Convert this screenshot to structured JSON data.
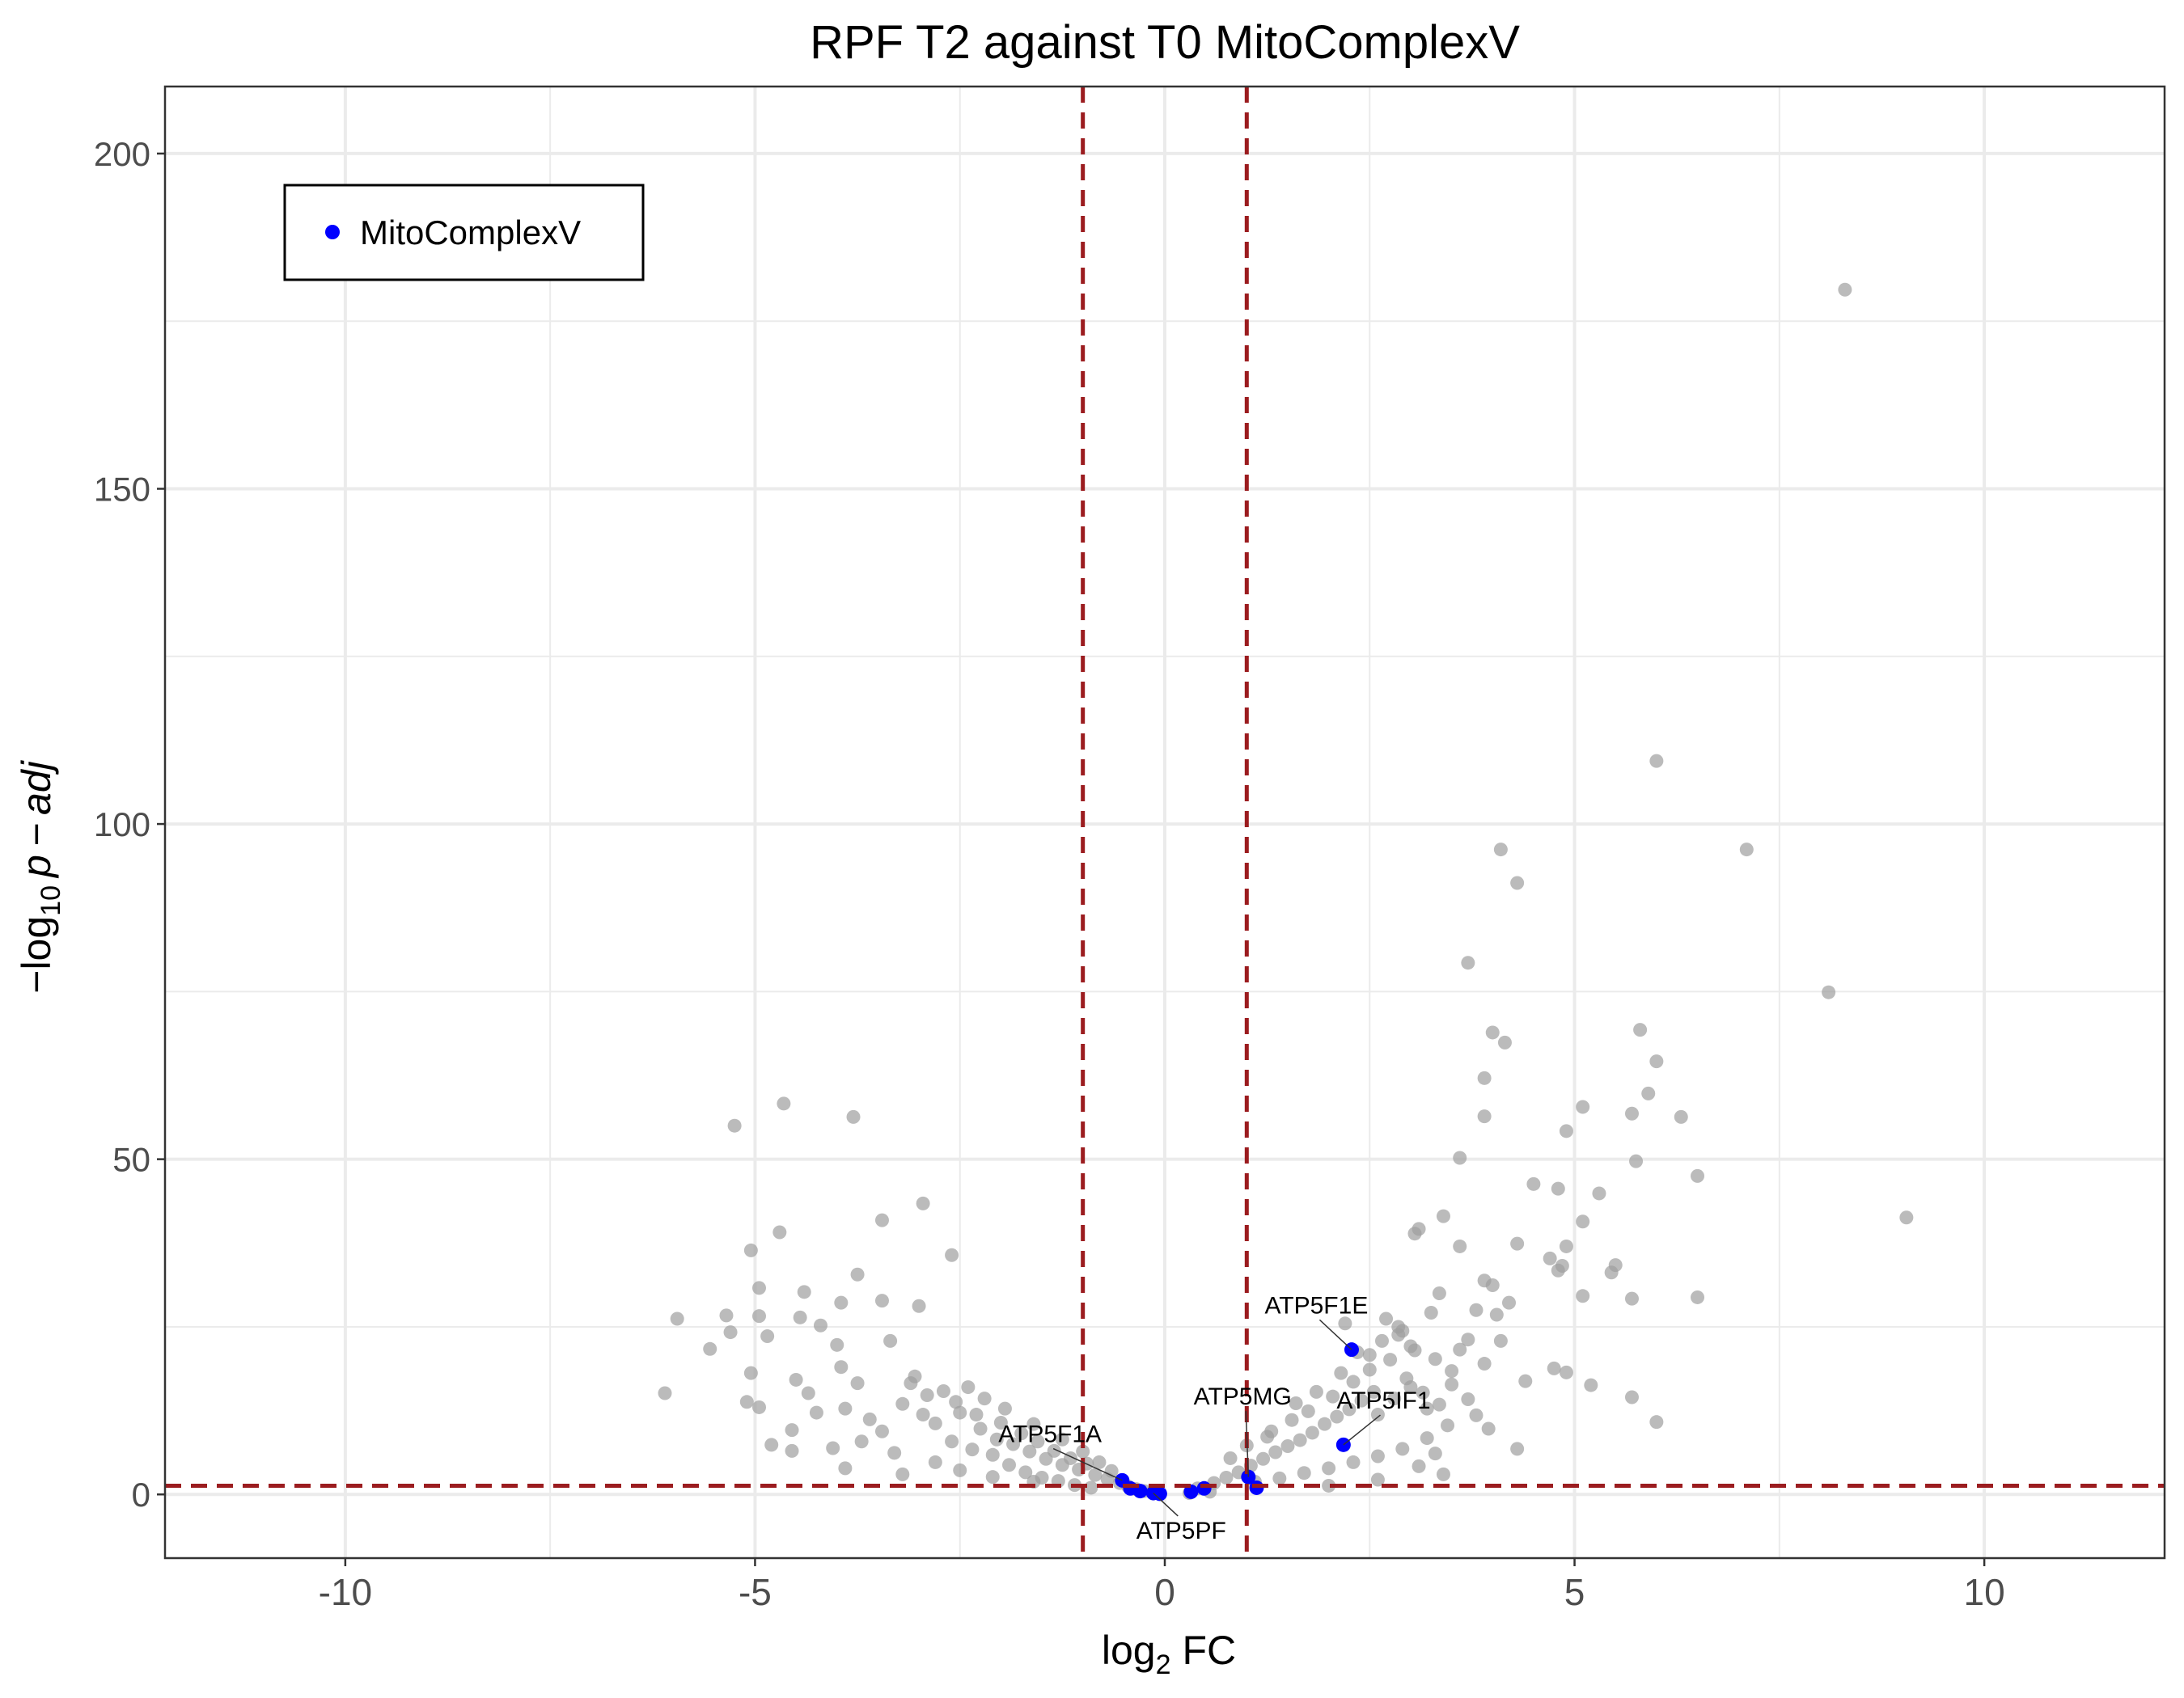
{
  "chart_data": {
    "type": "scatter",
    "title": "RPF T2 against T0 MitoComplexV",
    "xlabel": {
      "base": "log",
      "sub": "2",
      "tail": " FC"
    },
    "ylabel": {
      "prefix": "−log",
      "sub": "10",
      "tail": "p − adj"
    },
    "xlim": [
      -12.2,
      12.2
    ],
    "ylim": [
      -9.5,
      210
    ],
    "xticks": [
      -10,
      -5,
      0,
      5,
      10
    ],
    "xtick_labels": [
      "-10",
      "-5",
      "0",
      "5",
      "10"
    ],
    "yticks": [
      0,
      50,
      100,
      150,
      200
    ],
    "ytick_labels": [
      "0",
      "50",
      "100",
      "150",
      "200"
    ],
    "x_minor": [
      -7.5,
      -2.5,
      2.5,
      7.5
    ],
    "y_minor": [
      25,
      75,
      125,
      175
    ],
    "grid": true,
    "legend": {
      "position": "top-left",
      "entries": [
        "MitoComplexV"
      ]
    },
    "colors": {
      "background": "#ffffff",
      "other": "#9e9e9e",
      "highlight": "#0000ff",
      "threshold": "#9b1c1f",
      "grid": "#ebebeb",
      "border": "#333333"
    },
    "thresholds": {
      "fc": [
        -1,
        1
      ],
      "padj": 1.3
    },
    "series": [
      {
        "role": "other",
        "points": [
          [
            8.3,
            179.7
          ],
          [
            6.0,
            109.4
          ],
          [
            7.1,
            96.2
          ],
          [
            4.1,
            96.2
          ],
          [
            4.3,
            91.2
          ],
          [
            3.7,
            79.3
          ],
          [
            8.1,
            74.9
          ],
          [
            4.0,
            68.9
          ],
          [
            4.15,
            67.4
          ],
          [
            5.8,
            69.3
          ],
          [
            6.0,
            64.6
          ],
          [
            3.9,
            62.1
          ],
          [
            5.9,
            59.8
          ],
          [
            5.1,
            57.8
          ],
          [
            5.7,
            56.8
          ],
          [
            3.9,
            56.4
          ],
          [
            6.3,
            56.3
          ],
          [
            4.9,
            54.2
          ],
          [
            5.75,
            49.7
          ],
          [
            3.6,
            50.2
          ],
          [
            6.5,
            47.5
          ],
          [
            4.5,
            46.3
          ],
          [
            4.8,
            45.6
          ],
          [
            5.3,
            44.9
          ],
          [
            9.05,
            41.3
          ],
          [
            3.4,
            41.5
          ],
          [
            5.1,
            40.7
          ],
          [
            3.1,
            39.6
          ],
          [
            3.05,
            38.9
          ],
          [
            4.9,
            37.0
          ],
          [
            4.3,
            37.4
          ],
          [
            3.6,
            37.0
          ],
          [
            4.7,
            35.2
          ],
          [
            4.85,
            34.1
          ],
          [
            5.5,
            34.2
          ],
          [
            4.8,
            33.4
          ],
          [
            5.45,
            33.1
          ],
          [
            3.9,
            31.9
          ],
          [
            4.0,
            31.2
          ],
          [
            5.1,
            29.6
          ],
          [
            5.7,
            29.2
          ],
          [
            6.5,
            29.4
          ],
          [
            4.2,
            28.6
          ],
          [
            3.8,
            27.5
          ],
          [
            4.05,
            26.8
          ],
          [
            2.7,
            26.2
          ],
          [
            2.2,
            25.5
          ],
          [
            2.9,
            24.4
          ],
          [
            3.7,
            23.1
          ],
          [
            4.1,
            22.9
          ],
          [
            4.75,
            18.8
          ],
          [
            5.2,
            16.3
          ],
          [
            6.0,
            10.8
          ],
          [
            4.4,
            16.9
          ],
          [
            4.3,
            6.8
          ],
          [
            5.7,
            14.5
          ],
          [
            4.9,
            18.2
          ],
          [
            3.3,
            20.2
          ],
          [
            3.5,
            18.4
          ],
          [
            3.0,
            16.0
          ],
          [
            3.2,
            12.8
          ],
          [
            2.8,
            14.3
          ],
          [
            2.6,
            11.9
          ],
          [
            3.9,
            19.5
          ],
          [
            2.5,
            20.8
          ],
          [
            3.35,
            30.0
          ],
          [
            3.25,
            27.1
          ],
          [
            3.0,
            22.1
          ],
          [
            2.85,
            25.0
          ],
          [
            3.6,
            21.6
          ],
          [
            -5.25,
            55.0
          ],
          [
            -4.65,
            58.3
          ],
          [
            -3.8,
            56.3
          ],
          [
            -5.05,
            36.4
          ],
          [
            -4.7,
            39.1
          ],
          [
            -3.45,
            40.9
          ],
          [
            -2.95,
            43.4
          ],
          [
            -2.6,
            35.7
          ],
          [
            -6.1,
            15.1
          ],
          [
            -5.95,
            26.2
          ],
          [
            -5.55,
            21.7
          ],
          [
            -5.35,
            26.7
          ],
          [
            -4.95,
            30.8
          ],
          [
            -4.95,
            26.6
          ],
          [
            -4.45,
            26.4
          ],
          [
            -4.4,
            30.2
          ],
          [
            -4.2,
            25.2
          ],
          [
            -3.95,
            28.6
          ],
          [
            -3.75,
            32.8
          ],
          [
            -3.45,
            28.9
          ],
          [
            -3.0,
            28.1
          ],
          [
            -4.85,
            23.6
          ],
          [
            -4.5,
            17.1
          ],
          [
            -4.0,
            22.3
          ],
          [
            -3.95,
            19.0
          ],
          [
            -3.75,
            16.6
          ],
          [
            -3.35,
            22.9
          ],
          [
            -3.05,
            17.6
          ],
          [
            -5.05,
            18.1
          ],
          [
            -4.55,
            9.6
          ],
          [
            -4.25,
            12.2
          ],
          [
            -4.35,
            15.1
          ],
          [
            -4.55,
            6.5
          ],
          [
            -5.1,
            13.8
          ],
          [
            -3.9,
            12.8
          ],
          [
            -3.6,
            11.2
          ],
          [
            -3.2,
            13.5
          ],
          [
            -2.8,
            10.6
          ],
          [
            -2.5,
            12.2
          ],
          [
            -2.25,
            9.8
          ],
          [
            -2.05,
            8.2
          ],
          [
            -1.85,
            7.5
          ],
          [
            -1.65,
            6.4
          ],
          [
            -1.45,
            5.3
          ],
          [
            -1.25,
            4.4
          ],
          [
            -1.05,
            3.7
          ],
          [
            -0.85,
            2.9
          ],
          [
            -0.7,
            2.3
          ],
          [
            -0.55,
            1.7
          ],
          [
            -0.45,
            1.2
          ],
          [
            -2.2,
            14.3
          ],
          [
            -2.4,
            16.0
          ],
          [
            -2.7,
            15.4
          ],
          [
            -3.1,
            16.6
          ],
          [
            -2.9,
            14.8
          ],
          [
            -2.1,
            5.9
          ],
          [
            -1.9,
            4.4
          ],
          [
            -1.7,
            3.3
          ],
          [
            -1.5,
            2.5
          ],
          [
            -1.3,
            2.0
          ],
          [
            -2.6,
            7.9
          ],
          [
            -2.35,
            6.7
          ],
          [
            -2.0,
            10.7
          ],
          [
            -1.75,
            9.1
          ],
          [
            -1.55,
            7.9
          ],
          [
            -1.35,
            6.5
          ],
          [
            -1.15,
            5.4
          ],
          [
            -0.95,
            4.6
          ],
          [
            -2.8,
            4.8
          ],
          [
            -3.3,
            6.2
          ],
          [
            -3.7,
            7.9
          ],
          [
            -4.05,
            6.9
          ],
          [
            -3.45,
            9.4
          ],
          [
            -2.95,
            11.9
          ],
          [
            -2.55,
            13.8
          ],
          [
            -2.3,
            11.9
          ],
          [
            -1.95,
            12.8
          ],
          [
            -1.6,
            10.5
          ],
          [
            -1.25,
            8.2
          ],
          [
            -1.0,
            6.4
          ],
          [
            -0.8,
            4.8
          ],
          [
            -0.65,
            3.5
          ],
          [
            -0.35,
            0.8
          ],
          [
            -0.25,
            0.5
          ],
          [
            -0.15,
            0.3
          ],
          [
            -1.1,
            1.4
          ],
          [
            -1.6,
            1.9
          ],
          [
            -2.1,
            2.6
          ],
          [
            -2.5,
            3.6
          ],
          [
            -0.9,
            1.0
          ],
          [
            0.4,
            0.9
          ],
          [
            0.6,
            1.7
          ],
          [
            0.75,
            2.5
          ],
          [
            0.9,
            3.3
          ],
          [
            1.05,
            4.3
          ],
          [
            1.2,
            5.3
          ],
          [
            1.35,
            6.3
          ],
          [
            1.5,
            7.2
          ],
          [
            1.65,
            8.1
          ],
          [
            1.8,
            9.2
          ],
          [
            1.95,
            10.5
          ],
          [
            2.1,
            11.6
          ],
          [
            2.25,
            12.7
          ],
          [
            2.4,
            14.0
          ],
          [
            2.55,
            15.3
          ],
          [
            1.1,
            1.9
          ],
          [
            1.4,
            2.4
          ],
          [
            1.7,
            3.2
          ],
          [
            2.0,
            3.9
          ],
          [
            2.3,
            4.8
          ],
          [
            2.6,
            5.7
          ],
          [
            2.9,
            6.8
          ],
          [
            3.2,
            8.4
          ],
          [
            3.45,
            10.3
          ],
          [
            3.1,
            4.2
          ],
          [
            1.3,
            9.4
          ],
          [
            1.55,
            11.1
          ],
          [
            1.75,
            12.4
          ],
          [
            2.05,
            14.6
          ],
          [
            2.3,
            16.8
          ],
          [
            2.5,
            18.6
          ],
          [
            2.75,
            20.1
          ],
          [
            2.95,
            17.3
          ],
          [
            3.15,
            15.2
          ],
          [
            3.35,
            13.4
          ],
          [
            3.5,
            16.4
          ],
          [
            3.7,
            14.2
          ],
          [
            3.8,
            11.8
          ],
          [
            3.95,
            9.8
          ],
          [
            3.3,
            6.1
          ],
          [
            0.8,
            5.4
          ],
          [
            1.0,
            7.3
          ],
          [
            1.25,
            8.6
          ],
          [
            1.6,
            13.6
          ],
          [
            1.85,
            15.3
          ],
          [
            2.15,
            18.1
          ],
          [
            2.35,
            21.2
          ],
          [
            2.65,
            22.9
          ],
          [
            2.85,
            23.8
          ],
          [
            3.05,
            21.5
          ],
          [
            0.55,
            0.4
          ],
          [
            0.3,
            0.2
          ],
          [
            2.0,
            1.3
          ],
          [
            2.6,
            2.2
          ],
          [
            3.4,
            3.0
          ],
          [
            -3.9,
            3.9
          ],
          [
            -3.2,
            3.0
          ],
          [
            -4.8,
            7.4
          ],
          [
            -4.95,
            13.0
          ],
          [
            -5.3,
            24.2
          ]
        ]
      },
      {
        "role": "highlight",
        "name": "MitoComplexV",
        "points": [
          [
            2.28,
            21.6
          ],
          [
            2.18,
            7.4
          ],
          [
            1.02,
            2.6
          ],
          [
            1.12,
            1.0
          ],
          [
            0.48,
            0.9
          ],
          [
            0.32,
            0.4
          ],
          [
            -0.06,
            0.1
          ],
          [
            -0.14,
            0.2
          ],
          [
            -0.3,
            0.5
          ],
          [
            -0.42,
            0.9
          ],
          [
            -0.52,
            2.1
          ]
        ]
      }
    ],
    "annotations": [
      {
        "text": "ATP5F1E",
        "x": 2.28,
        "y": 21.6,
        "lx": 1.85,
        "ly": 27.0
      },
      {
        "text": "ATP5MG",
        "x": 1.02,
        "y": 2.6,
        "lx": 0.95,
        "ly": 13.4
      },
      {
        "text": "ATP5IF1",
        "x": 2.18,
        "y": 7.4,
        "lx": 2.67,
        "ly": 12.8
      },
      {
        "text": "ATP5F1A",
        "x": -0.52,
        "y": 2.1,
        "lx": -1.4,
        "ly": 7.8
      },
      {
        "text": "ATP5PF",
        "x": -0.14,
        "y": 0.2,
        "lx": 0.2,
        "ly": -6.6
      }
    ]
  }
}
